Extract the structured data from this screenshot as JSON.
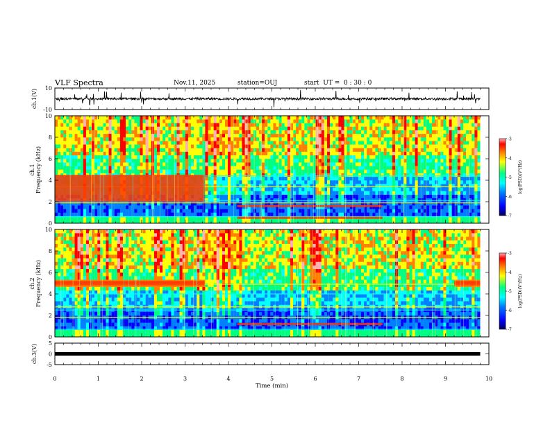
{
  "header": {
    "title": "VLF Spectra",
    "date": "Nov.11, 2025",
    "station": "station=OUJ",
    "start": "start  UT =  0 : 30 : 0"
  },
  "colors": {
    "frame": "#000000",
    "colormap": [
      "#000060",
      "#0000ff",
      "#0080ff",
      "#00ffff",
      "#00ff80",
      "#ffff00",
      "#ff8000",
      "#ff0000",
      "#ffb0b0"
    ]
  },
  "chart_data": [
    {
      "type": "line",
      "name": "ch1-waveform",
      "ylabel": "ch.1(V)",
      "ylim": [
        -10,
        10
      ],
      "ytick_labels": [
        "10",
        "-10"
      ],
      "baseline": 0,
      "xlim": [
        0,
        10
      ],
      "x_extent": [
        0,
        9.8
      ]
    },
    {
      "type": "heatmap",
      "name": "ch1-spectrogram",
      "ylabel": "ch.1  Frequency (kHz)",
      "ylim": [
        0,
        10
      ],
      "ytick_labels": [
        "0",
        "2",
        "4",
        "6",
        "8",
        "10"
      ],
      "xlim": [
        0,
        10
      ],
      "x_extent": [
        0,
        9.8
      ],
      "colorbar": {
        "label": "log(PSD)(V²/Hz)",
        "range": [
          -7,
          -3
        ],
        "tick_labels": [
          "-3",
          "-4",
          "-5",
          "-6",
          "-7"
        ]
      },
      "features": [
        {
          "desc": "noise band 2-4.5 kHz ends",
          "x": [
            0,
            3.45
          ],
          "y": [
            2,
            4.5
          ]
        },
        {
          "desc": "emission band",
          "x": [
            4.2,
            7.55
          ],
          "y": [
            0.4,
            0.6
          ]
        },
        {
          "desc": "emission band",
          "x": [
            4.2,
            7.55
          ],
          "y": [
            1.5,
            1.7
          ]
        }
      ]
    },
    {
      "type": "heatmap",
      "name": "ch2-spectrogram",
      "ylabel": "ch.2  Frequency (kHz)",
      "ylim": [
        0,
        10
      ],
      "ytick_labels": [
        "0",
        "2",
        "4",
        "6",
        "8",
        "10"
      ],
      "xlim": [
        0,
        10
      ],
      "x_extent": [
        0,
        9.8
      ],
      "colorbar": {
        "label": "log(PSD)(V²/Hz)",
        "range": [
          -7,
          -3
        ],
        "tick_labels": [
          "-3",
          "-4",
          "-5",
          "-6",
          "-7"
        ]
      },
      "features": [
        {
          "desc": "band near 5 kHz",
          "x": [
            0,
            3.45
          ],
          "y": [
            4.8,
            5.2
          ]
        },
        {
          "desc": "band near 5 kHz",
          "x": [
            9.2,
            9.8
          ],
          "y": [
            4.8,
            5.2
          ]
        },
        {
          "desc": "emission band",
          "x": [
            4.2,
            7.55
          ],
          "y": [
            1.1,
            1.3
          ]
        }
      ]
    },
    {
      "type": "line",
      "name": "ch3-waveform",
      "ylabel": "ch.3(V)",
      "ylim": [
        -5,
        5
      ],
      "ytick_labels": [
        "5",
        "0",
        "-5"
      ],
      "baseline": 0,
      "xlim": [
        0,
        10
      ],
      "x_extent": [
        0,
        9.8
      ]
    },
    {
      "type": "axis",
      "name": "time-axis",
      "xlabel": "Time (min)",
      "xlim": [
        0,
        10
      ],
      "xtick_labels": [
        "0",
        "1",
        "2",
        "3",
        "4",
        "5",
        "6",
        "7",
        "8",
        "9",
        "10"
      ]
    }
  ]
}
